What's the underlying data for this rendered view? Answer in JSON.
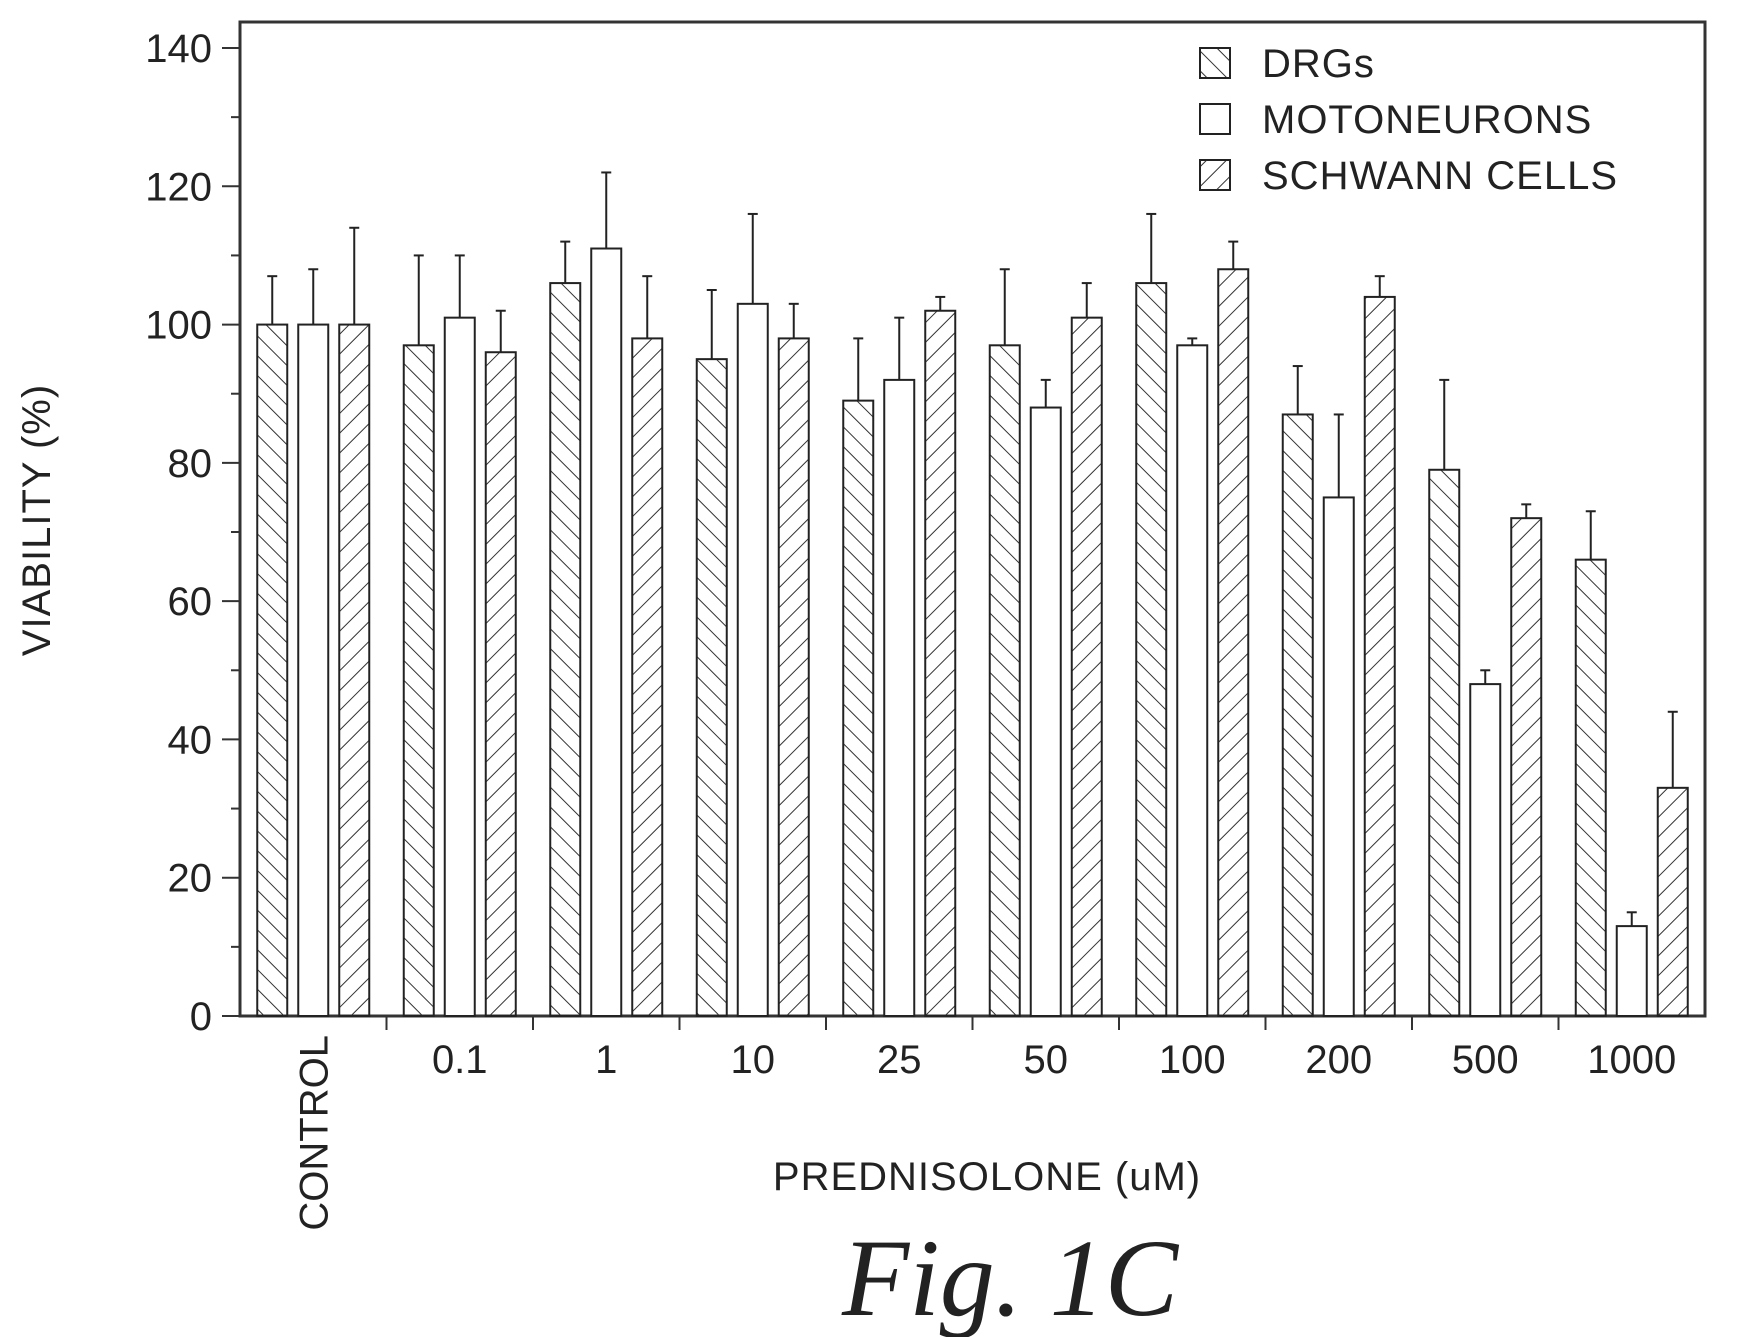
{
  "chart_data": {
    "type": "bar",
    "ylabel": "VIABILITY (%)",
    "xlabel": "PREDNISOLONE (uM)",
    "ylim": [
      0,
      140
    ],
    "yticks": [
      0,
      20,
      40,
      60,
      80,
      100,
      120,
      140
    ],
    "categories": [
      "CONTROL",
      "0.1",
      "1",
      "10",
      "25",
      "50",
      "100",
      "200",
      "500",
      "1000"
    ],
    "legend_position": "top-right",
    "grid": false,
    "series": [
      {
        "name": "DRGs",
        "pattern": "hatch-forward",
        "values": [
          100,
          97,
          106,
          95,
          89,
          97,
          106,
          87,
          79,
          66
        ],
        "errors": [
          7,
          13,
          6,
          10,
          9,
          11,
          10,
          7,
          13,
          7
        ]
      },
      {
        "name": "MOTONEURONS",
        "pattern": "none",
        "values": [
          100,
          101,
          111,
          103,
          92,
          88,
          97,
          75,
          48,
          13
        ],
        "errors": [
          8,
          9,
          11,
          13,
          9,
          4,
          1,
          12,
          2,
          2
        ]
      },
      {
        "name": "SCHWANN CELLS",
        "pattern": "hatch-back",
        "values": [
          100,
          96,
          98,
          98,
          102,
          101,
          108,
          104,
          72,
          33
        ],
        "errors": [
          14,
          6,
          9,
          5,
          2,
          5,
          4,
          3,
          2,
          11
        ]
      }
    ]
  },
  "caption": "Fig.  1C"
}
